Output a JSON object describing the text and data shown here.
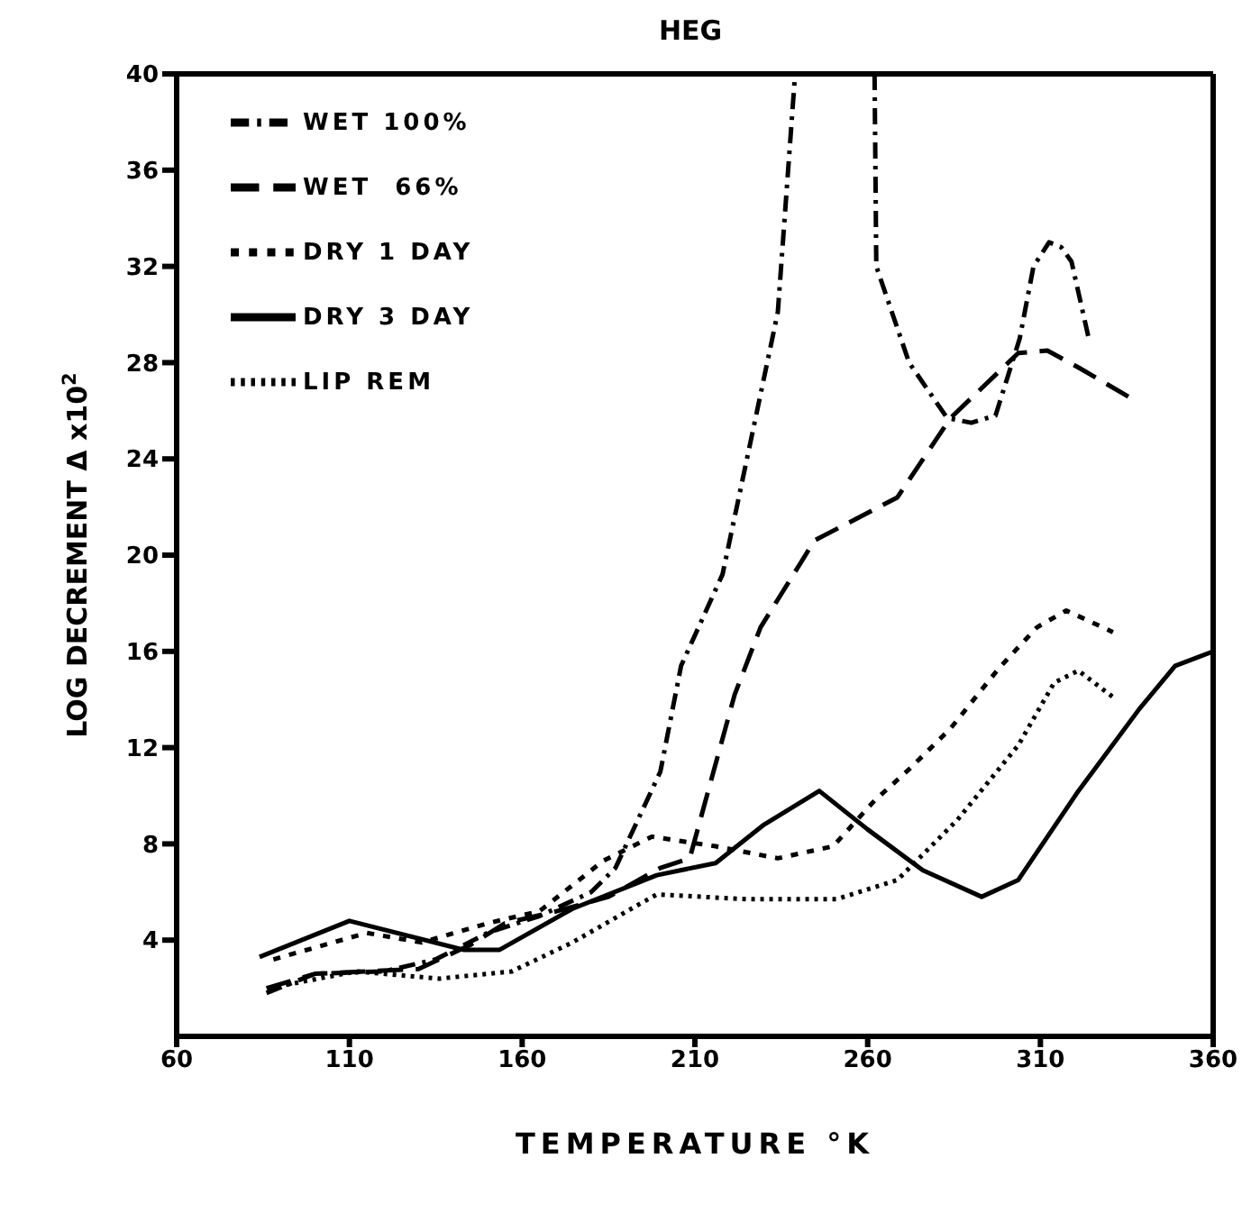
{
  "chart_data": {
    "type": "line",
    "title": "HEG",
    "xlabel": "TEMPERATURE °K",
    "ylabel": "LOG DECREMENT  Δ x10$^{2}$",
    "xlim": [
      60,
      360
    ],
    "xticks": [
      60,
      110,
      160,
      210,
      260,
      310,
      360
    ],
    "ylim": [
      0,
      40
    ],
    "yticks": [
      4,
      8,
      12,
      16,
      20,
      24,
      28,
      32,
      36,
      40
    ],
    "grid": false,
    "legend": "top left",
    "marker": "none",
    "series": [
      {
        "name": "WET 100%",
        "color": "#000000",
        "line_style": "dashdot",
        "x": [
          86,
          100,
          120,
          135,
          150,
          165,
          180,
          187,
          200,
          206,
          218,
          228,
          234,
          239,
          250,
          262,
          262.5,
          272,
          283,
          290,
          297,
          304,
          308,
          312.5,
          316,
          319,
          324
        ],
        "values": [
          1.8,
          2.6,
          2.7,
          3.2,
          4.3,
          5,
          6,
          7,
          11,
          15.4,
          19.2,
          26,
          30.1,
          40,
          null,
          40,
          32,
          28,
          25.7,
          25.5,
          25.8,
          29,
          32,
          33,
          32.8,
          32.2,
          29
        ]
      },
      {
        "name": "WET  66%",
        "color": "#000000",
        "line_style": "dashed",
        "x": [
          86,
          100,
          130,
          145,
          155,
          170,
          185,
          200,
          208.5,
          221.5,
          229,
          242,
          244.5,
          268.6,
          284,
          303.6,
          312,
          321,
          336.5
        ],
        "values": [
          2,
          2.6,
          2.8,
          3.8,
          4.7,
          5.2,
          5.8,
          7,
          7.4,
          14.2,
          17,
          20,
          20.6,
          22.4,
          25.7,
          28.4,
          28.5,
          27.8,
          26.5
        ]
      },
      {
        "name": "DRY 1 DAY",
        "color": "#000000",
        "line_style": "short dashed",
        "x": [
          88,
          115,
          131,
          150,
          165,
          176.5,
          183.5,
          197.5,
          216,
          234,
          250,
          262,
          272,
          284,
          298,
          309,
          317.5,
          331
        ],
        "values": [
          3.2,
          4.3,
          3.9,
          4.7,
          5.2,
          6.5,
          7.3,
          8.3,
          7.9,
          7.4,
          7.9,
          9.8,
          11.1,
          12.8,
          15.3,
          17,
          17.7,
          16.8
        ]
      },
      {
        "name": "DRY 3 DAY",
        "color": "#000000",
        "line_style": "solid",
        "x": [
          84,
          110,
          143,
          153.5,
          174.5,
          199,
          216,
          230,
          246,
          260,
          276,
          293,
          303.6,
          321,
          338.6,
          349,
          360
        ],
        "values": [
          3.3,
          4.8,
          3.6,
          3.6,
          5.3,
          6.7,
          7.2,
          8.8,
          10.2,
          8.6,
          6.9,
          5.8,
          6.5,
          10.2,
          13.6,
          15.4,
          16
        ]
      },
      {
        "name": "LIP REM",
        "color": "#000000",
        "line_style": "dotted",
        "x": [
          86.5,
          112,
          136,
          157,
          174.5,
          194,
          199,
          225,
          251,
          268.6,
          286,
          303.6,
          314,
          321,
          331
        ],
        "values": [
          2,
          2.7,
          2.4,
          2.7,
          3.9,
          5.5,
          5.9,
          5.7,
          5.7,
          6.5,
          9,
          12.1,
          14.7,
          15.2,
          14.1
        ]
      }
    ]
  }
}
